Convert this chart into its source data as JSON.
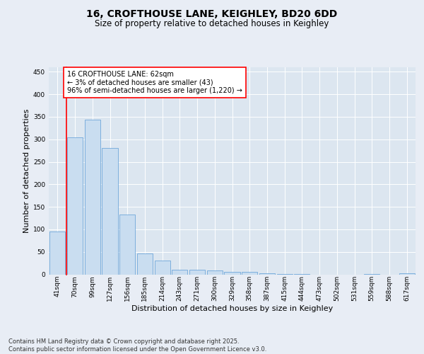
{
  "title": "16, CROFTHOUSE LANE, KEIGHLEY, BD20 6DD",
  "subtitle": "Size of property relative to detached houses in Keighley",
  "xlabel": "Distribution of detached houses by size in Keighley",
  "ylabel": "Number of detached properties",
  "categories": [
    "41sqm",
    "70sqm",
    "99sqm",
    "127sqm",
    "156sqm",
    "185sqm",
    "214sqm",
    "243sqm",
    "271sqm",
    "300sqm",
    "329sqm",
    "358sqm",
    "387sqm",
    "415sqm",
    "444sqm",
    "473sqm",
    "502sqm",
    "531sqm",
    "559sqm",
    "588sqm",
    "617sqm"
  ],
  "values": [
    95,
    305,
    343,
    280,
    133,
    46,
    30,
    10,
    10,
    8,
    6,
    5,
    3,
    1,
    0.5,
    0,
    0,
    0,
    1,
    0,
    2
  ],
  "bar_color": "#c9ddf0",
  "bar_edge_color": "#5b9bd5",
  "annotation_text": "16 CROFTHOUSE LANE: 62sqm\n← 3% of detached houses are smaller (43)\n96% of semi-detached houses are larger (1,220) →",
  "red_line_x": 0.5,
  "ylim": [
    0,
    460
  ],
  "yticks": [
    0,
    50,
    100,
    150,
    200,
    250,
    300,
    350,
    400,
    450
  ],
  "background_color": "#e8edf5",
  "plot_bg_color": "#dce6f0",
  "grid_color": "#ffffff",
  "footer_line1": "Contains HM Land Registry data © Crown copyright and database right 2025.",
  "footer_line2": "Contains public sector information licensed under the Open Government Licence v3.0.",
  "title_fontsize": 10,
  "subtitle_fontsize": 8.5,
  "ylabel_fontsize": 8,
  "xlabel_fontsize": 8,
  "tick_fontsize": 6.5,
  "annotation_fontsize": 7,
  "footer_fontsize": 6
}
